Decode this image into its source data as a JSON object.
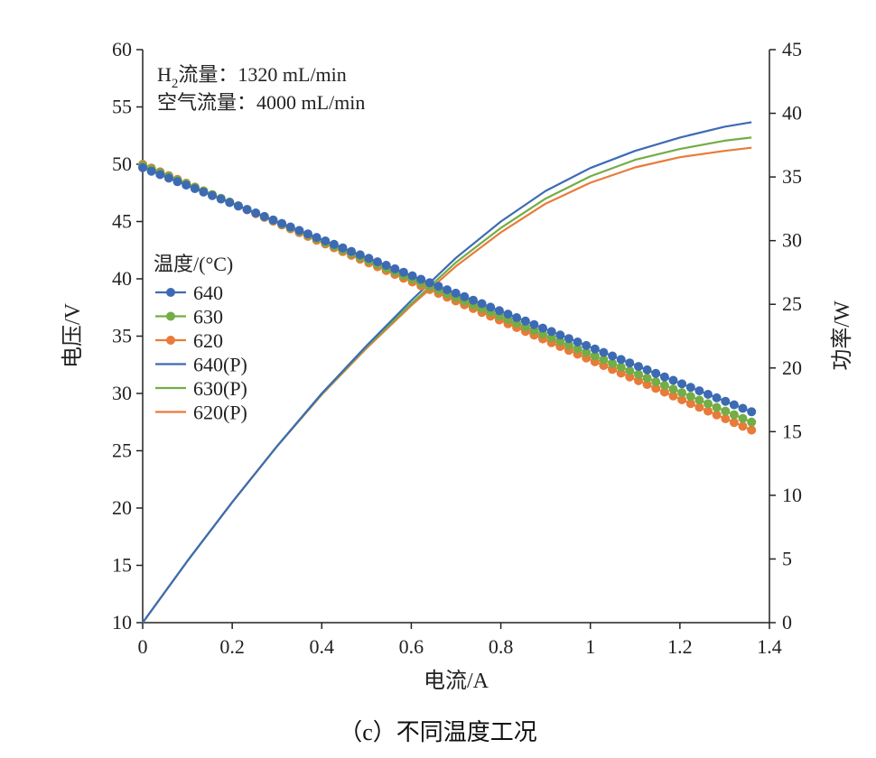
{
  "chart_data": {
    "type": "line",
    "caption": "（c）不同温度工况",
    "xlabel": "电流/A",
    "ylabel_left": "电压/V",
    "ylabel_right": "功率/W",
    "xlim": [
      0,
      1.4
    ],
    "ylim_left": [
      10,
      60
    ],
    "ylim_right": [
      0,
      45
    ],
    "x_ticks": [
      0,
      0.2,
      0.4,
      0.6,
      0.8,
      1,
      1.2,
      1.4
    ],
    "x_tick_labels": [
      "0",
      "0.2",
      "0.4",
      "0.6",
      "0.8",
      "1",
      "1.2",
      "1.4"
    ],
    "y_left_ticks": [
      10,
      15,
      20,
      25,
      30,
      35,
      40,
      45,
      50,
      55,
      60
    ],
    "y_right_ticks": [
      0,
      5,
      10,
      15,
      20,
      25,
      30,
      35,
      40,
      45
    ],
    "annotations": {
      "h2_prefix": "H",
      "h2_sub": "2",
      "h2_rest": "流量：1320 mL/min",
      "air": "空气流量：4000 mL/min"
    },
    "legend_title": "温度/(°C)",
    "voltage_series": [
      {
        "name": "640",
        "color": "#3d6bb3",
        "x": [
          0,
          1.36
        ],
        "y": [
          49.7,
          28.4
        ]
      },
      {
        "name": "630",
        "color": "#73ad45",
        "x": [
          0,
          1.36
        ],
        "y": [
          49.9,
          27.5
        ]
      },
      {
        "name": "620",
        "color": "#e87b39",
        "x": [
          0,
          1.36
        ],
        "y": [
          50.0,
          26.8
        ]
      }
    ],
    "power_series": [
      {
        "name": "640(P)",
        "color": "#3d6bb3",
        "x": [
          0,
          0.1,
          0.2,
          0.3,
          0.4,
          0.5,
          0.6,
          0.7,
          0.8,
          0.9,
          1.0,
          1.1,
          1.2,
          1.3,
          1.36
        ],
        "y": [
          0,
          4.85,
          9.45,
          13.85,
          18.0,
          21.75,
          25.3,
          28.65,
          31.5,
          33.9,
          35.7,
          37.05,
          38.1,
          38.95,
          39.3
        ]
      },
      {
        "name": "630(P)",
        "color": "#73ad45",
        "x": [
          0,
          0.1,
          0.2,
          0.3,
          0.4,
          0.5,
          0.6,
          0.7,
          0.8,
          0.9,
          1.0,
          1.1,
          1.2,
          1.3,
          1.36
        ],
        "y": [
          0,
          4.85,
          9.45,
          13.85,
          17.95,
          21.65,
          25.05,
          28.3,
          31.0,
          33.3,
          35.05,
          36.35,
          37.2,
          37.85,
          38.1
        ]
      },
      {
        "name": "620(P)",
        "color": "#e87b39",
        "x": [
          0,
          0.1,
          0.2,
          0.3,
          0.4,
          0.5,
          0.6,
          0.7,
          0.8,
          0.9,
          1.0,
          1.1,
          1.2,
          1.3,
          1.36
        ],
        "y": [
          0,
          4.85,
          9.45,
          13.85,
          17.9,
          21.55,
          24.9,
          28.0,
          30.65,
          32.9,
          34.55,
          35.75,
          36.55,
          37.05,
          37.3
        ]
      }
    ]
  }
}
